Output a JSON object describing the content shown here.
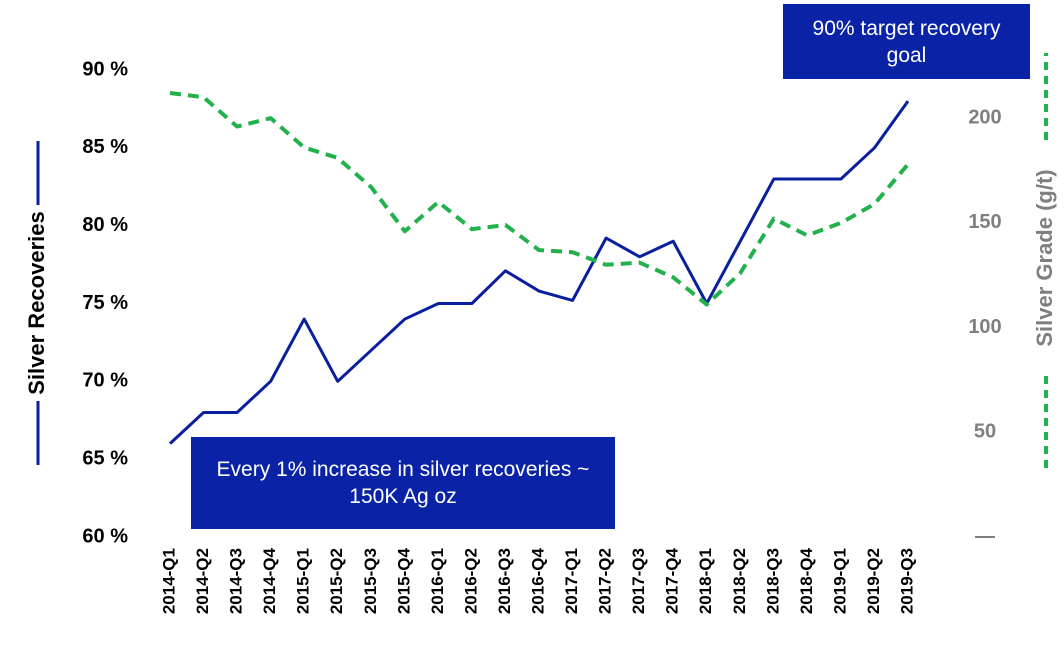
{
  "chart_data": {
    "type": "line",
    "ylabel": "Silver Recoveries",
    "y2label": "Silver  Grade (g/t)",
    "categories": [
      "2014-Q1",
      "2014-Q2",
      "2014-Q3",
      "2014-Q4",
      "2015-Q1",
      "2015-Q2",
      "2015-Q3",
      "2015-Q4",
      "2016-Q1",
      "2016-Q2",
      "2016-Q3",
      "2016-Q4",
      "2017-Q1",
      "2017-Q2",
      "2017-Q3",
      "2017-Q4",
      "2018-Q1",
      "2018-Q2",
      "2018-Q3",
      "2018-Q4",
      "2019-Q1",
      "2019-Q2",
      "2019-Q3"
    ],
    "series": [
      {
        "name": "Silver Recoveries",
        "color": "#0a1f9e",
        "dashed": false,
        "axis": "y",
        "values": [
          66,
          68,
          68,
          70,
          74,
          70,
          72,
          74,
          75,
          75,
          77.1,
          75.8,
          75.2,
          79.2,
          78,
          79,
          75,
          79,
          83,
          83,
          83,
          85,
          88
        ]
      },
      {
        "name": "Silver Grade",
        "color": "#22b14c",
        "dashed": true,
        "axis": "y2",
        "values": [
          212,
          210,
          196,
          200,
          186,
          181,
          167,
          146,
          160,
          147,
          149,
          137,
          136,
          130,
          131,
          124,
          111,
          126,
          152,
          144,
          150,
          159,
          178
        ]
      }
    ],
    "ylim": [
      60,
      90
    ],
    "yticks": [
      {
        "value": 60,
        "label": "60 %"
      },
      {
        "value": 65,
        "label": "65 %"
      },
      {
        "value": 70,
        "label": "70 %"
      },
      {
        "value": 75,
        "label": "75 %"
      },
      {
        "value": 80,
        "label": "80 %"
      },
      {
        "value": 85,
        "label": "85 %"
      },
      {
        "value": 90,
        "label": "90 %"
      }
    ],
    "y2lim": [
      0,
      223
    ],
    "y2ticks": [
      {
        "value": 0,
        "label": "—"
      },
      50,
      100,
      150,
      200
    ],
    "grid": false,
    "annotations": [
      "90% target recovery goal",
      "Every 1% increase in silver recoveries ~ 150K Ag oz"
    ]
  }
}
